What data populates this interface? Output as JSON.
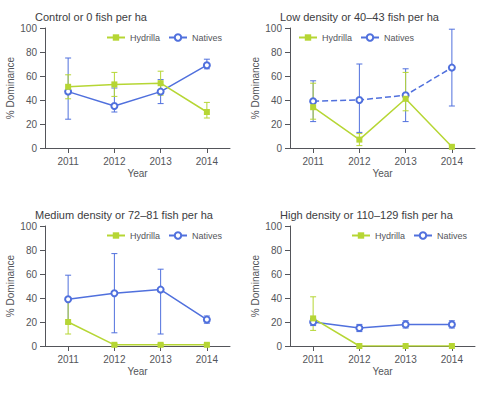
{
  "chart_data": [
    {
      "type": "line",
      "title": "Control or 0 fish per ha",
      "x": [
        2011,
        2012,
        2013,
        2014
      ],
      "xlim": [
        2010.5,
        2014.5
      ],
      "xticks": [
        2011,
        2012,
        2013,
        2014
      ],
      "ylim": [
        0,
        100
      ],
      "yticks": [
        0,
        20,
        40,
        60,
        80,
        100
      ],
      "x_label": "Year",
      "y_label": "% Dominance",
      "grid": false,
      "legend": "upper right",
      "series": [
        {
          "name": "Natives",
          "marker": "open_circle",
          "line_style": "solid",
          "values": [
            47,
            35,
            47,
            69
          ],
          "error_minus": [
            23,
            5,
            10,
            3
          ],
          "error_plus": [
            28,
            15,
            10,
            5
          ]
        },
        {
          "name": "Hydrilla",
          "marker": "square",
          "line_style": "solid",
          "values": [
            51,
            53,
            54,
            30
          ],
          "error_minus": [
            10,
            10,
            10,
            5
          ],
          "error_plus": [
            10,
            10,
            10,
            8
          ]
        }
      ]
    },
    {
      "type": "line",
      "title": "Low density or 40–43 fish per ha",
      "x": [
        2011,
        2012,
        2013,
        2014
      ],
      "xlim": [
        2010.5,
        2014.5
      ],
      "xticks": [
        2011,
        2012,
        2013,
        2014
      ],
      "ylim": [
        0,
        100
      ],
      "yticks": [
        0,
        20,
        40,
        60,
        80,
        100
      ],
      "x_label": "Year",
      "y_label": "% Dominance",
      "grid": false,
      "legend": "upper left",
      "series": [
        {
          "name": "Natives",
          "marker": "open_circle",
          "line_style": "dashed",
          "values": [
            39,
            40,
            44,
            67
          ],
          "error_minus": [
            17,
            27,
            22,
            32
          ],
          "error_plus": [
            17,
            30,
            22,
            32
          ]
        },
        {
          "name": "Hydrilla",
          "marker": "square",
          "line_style": "solid",
          "values": [
            34,
            7,
            41,
            1
          ],
          "error_minus": [
            10,
            5,
            10,
            1
          ],
          "error_plus": [
            20,
            5,
            22,
            1
          ]
        }
      ]
    },
    {
      "type": "line",
      "title": "Medium density or 72–81 fish per ha",
      "x": [
        2011,
        2012,
        2013,
        2014
      ],
      "xlim": [
        2010.5,
        2014.5
      ],
      "xticks": [
        2011,
        2012,
        2013,
        2014
      ],
      "ylim": [
        0,
        100
      ],
      "yticks": [
        0,
        20,
        40,
        60,
        80,
        100
      ],
      "x_label": "Year",
      "y_label": "% Dominance",
      "grid": false,
      "legend": "upper right",
      "series": [
        {
          "name": "Natives",
          "marker": "open_circle",
          "line_style": "solid",
          "values": [
            39,
            44,
            47,
            22
          ],
          "error_minus": [
            20,
            33,
            37,
            3
          ],
          "error_plus": [
            20,
            33,
            17,
            3
          ]
        },
        {
          "name": "Hydrilla",
          "marker": "square",
          "line_style": "solid",
          "values": [
            20,
            1,
            1,
            1
          ],
          "error_minus": [
            10,
            1,
            1,
            1
          ],
          "error_plus": [
            20,
            1,
            1,
            1
          ]
        }
      ]
    },
    {
      "type": "line",
      "title": "High density or 110–129 fish per ha",
      "x": [
        2011,
        2012,
        2013,
        2014
      ],
      "xlim": [
        2010.5,
        2014.5
      ],
      "xticks": [
        2011,
        2012,
        2013,
        2014
      ],
      "ylim": [
        0,
        100
      ],
      "yticks": [
        0,
        20,
        40,
        60,
        80,
        100
      ],
      "x_label": "Year",
      "y_label": "% Dominance",
      "grid": false,
      "legend": "upper right",
      "series": [
        {
          "name": "Natives",
          "marker": "open_circle",
          "line_style": "solid",
          "values": [
            20,
            15,
            18,
            18
          ],
          "error_minus": [
            3,
            3,
            3,
            3
          ],
          "error_plus": [
            3,
            3,
            3,
            3
          ]
        },
        {
          "name": "Hydrilla",
          "marker": "square",
          "line_style": "solid",
          "values": [
            23,
            0,
            0,
            0
          ],
          "error_minus": [
            10,
            0,
            0,
            0
          ],
          "error_plus": [
            18,
            0,
            0,
            0
          ]
        }
      ]
    }
  ]
}
